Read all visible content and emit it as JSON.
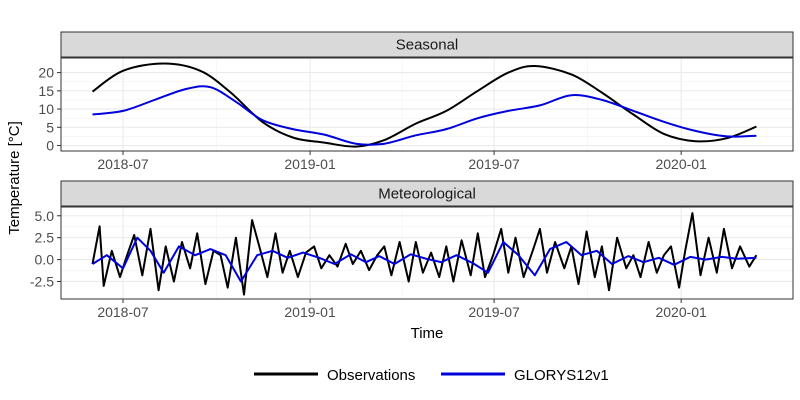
{
  "colors": {
    "observations": "#000000",
    "glorys": "#0000dd",
    "strip_bg": "#d9d9d9",
    "grid": "#ebebeb",
    "panel_border": "#333333"
  },
  "axes": {
    "xlabel": "Time",
    "ylabel": "Temperature [°C]"
  },
  "legend": {
    "placement": "bottom"
  },
  "chart_data": [
    {
      "type": "line",
      "title": "Seasonal",
      "x_ticks": [
        "2018-07",
        "2019-01",
        "2019-07",
        "2020-01"
      ],
      "y_ticks": [
        0,
        5,
        10,
        15,
        20
      ],
      "ylim": [
        -1.5,
        24
      ],
      "xlim": [
        "2018-05-01",
        "2020-04-20"
      ],
      "grid": true,
      "series": [
        {
          "name": "Observations",
          "x": [
            "2018-06-01",
            "2018-07-01",
            "2018-08-10",
            "2018-09-15",
            "2018-10-15",
            "2018-11-15",
            "2018-12-15",
            "2019-01-15",
            "2019-02-15",
            "2019-03-15",
            "2019-04-15",
            "2019-05-15",
            "2019-06-15",
            "2019-07-15",
            "2019-08-10",
            "2019-09-15",
            "2019-10-15",
            "2019-11-15",
            "2019-12-15",
            "2020-01-15",
            "2020-02-15",
            "2020-03-15"
          ],
          "y": [
            14.8,
            20.5,
            22.5,
            20.5,
            14.5,
            6.5,
            2.2,
            0.8,
            -0.3,
            1.5,
            6.0,
            9.5,
            15.0,
            20.0,
            21.8,
            19.5,
            14.5,
            8.5,
            3.2,
            1.2,
            2.0,
            5.2
          ]
        },
        {
          "name": "GLORYS12v1",
          "x": [
            "2018-06-01",
            "2018-07-01",
            "2018-08-01",
            "2018-09-01",
            "2018-09-25",
            "2018-10-20",
            "2018-11-15",
            "2018-12-15",
            "2019-01-15",
            "2019-02-15",
            "2019-03-15",
            "2019-04-15",
            "2019-05-15",
            "2019-06-15",
            "2019-07-15",
            "2019-08-15",
            "2019-09-15",
            "2019-10-15",
            "2019-11-15",
            "2019-12-15",
            "2020-01-15",
            "2020-02-15",
            "2020-03-15"
          ],
          "y": [
            8.5,
            9.5,
            12.5,
            15.5,
            16.0,
            12.0,
            7.0,
            4.5,
            3.0,
            0.5,
            0.5,
            2.8,
            4.5,
            7.5,
            9.5,
            11.0,
            13.8,
            12.5,
            9.5,
            6.5,
            4.0,
            2.5,
            2.7
          ]
        }
      ]
    },
    {
      "type": "line",
      "title": "Meteorological",
      "x_ticks": [
        "2018-07",
        "2019-01",
        "2019-07",
        "2020-01"
      ],
      "y_ticks": [
        -2.5,
        0.0,
        2.5,
        5.0
      ],
      "ylim": [
        -4.5,
        6.0
      ],
      "xlim": [
        "2018-05-01",
        "2020-04-20"
      ],
      "grid": true,
      "series": [
        {
          "name": "Observations",
          "x": [
            "2018-06-01",
            "2018-06-08",
            "2018-06-12",
            "2018-06-20",
            "2018-06-28",
            "2018-07-05",
            "2018-07-12",
            "2018-07-20",
            "2018-07-28",
            "2018-08-05",
            "2018-08-12",
            "2018-08-20",
            "2018-08-28",
            "2018-09-05",
            "2018-09-12",
            "2018-09-20",
            "2018-09-28",
            "2018-10-05",
            "2018-10-12",
            "2018-10-20",
            "2018-10-28",
            "2018-11-05",
            "2018-11-12",
            "2018-11-20",
            "2018-11-28",
            "2018-12-05",
            "2018-12-12",
            "2018-12-20",
            "2018-12-28",
            "2019-01-05",
            "2019-01-12",
            "2019-01-20",
            "2019-01-28",
            "2019-02-05",
            "2019-02-12",
            "2019-02-20",
            "2019-02-28",
            "2019-03-08",
            "2019-03-15",
            "2019-03-22",
            "2019-03-30",
            "2019-04-08",
            "2019-04-15",
            "2019-04-22",
            "2019-04-30",
            "2019-05-08",
            "2019-05-15",
            "2019-05-22",
            "2019-05-30",
            "2019-06-08",
            "2019-06-15",
            "2019-06-22",
            "2019-06-30",
            "2019-07-08",
            "2019-07-15",
            "2019-07-22",
            "2019-07-30",
            "2019-08-08",
            "2019-08-15",
            "2019-08-22",
            "2019-08-30",
            "2019-09-08",
            "2019-09-15",
            "2019-09-22",
            "2019-09-30",
            "2019-10-08",
            "2019-10-15",
            "2019-10-22",
            "2019-10-30",
            "2019-11-08",
            "2019-11-15",
            "2019-11-22",
            "2019-11-30",
            "2019-12-08",
            "2019-12-15",
            "2019-12-22",
            "2019-12-30",
            "2020-01-05",
            "2020-01-12",
            "2020-01-20",
            "2020-01-28",
            "2020-02-05",
            "2020-02-12",
            "2020-02-20",
            "2020-02-28",
            "2020-03-08",
            "2020-03-15"
          ],
          "y": [
            -0.5,
            3.8,
            -3.0,
            1.0,
            -2.0,
            0.5,
            2.8,
            -1.8,
            3.5,
            -3.5,
            1.5,
            -2.5,
            2.0,
            -1.0,
            3.0,
            -2.8,
            1.0,
            0.5,
            -3.2,
            2.5,
            -4.0,
            4.5,
            1.5,
            -2.0,
            3.0,
            -1.5,
            1.0,
            -2.0,
            0.8,
            1.5,
            -1.0,
            0.5,
            -0.8,
            1.8,
            -0.5,
            1.0,
            -1.2,
            0.5,
            1.5,
            -1.8,
            2.0,
            -2.5,
            2.0,
            -1.5,
            0.8,
            -2.0,
            1.5,
            -2.5,
            2.2,
            -1.8,
            3.0,
            -2.0,
            0.5,
            3.5,
            -1.5,
            2.5,
            -2.0,
            1.0,
            3.5,
            -1.5,
            2.0,
            -1.0,
            1.5,
            -2.8,
            3.2,
            -2.0,
            1.5,
            -3.5,
            2.5,
            -1.0,
            0.5,
            -2.0,
            2.0,
            -1.5,
            0.5,
            1.5,
            -3.2,
            1.0,
            5.3,
            -1.8,
            2.5,
            -1.5,
            3.5,
            -1.0,
            1.5,
            -0.8,
            0.5
          ]
        },
        {
          "name": "GLORYS12v1",
          "x": [
            "2018-06-01",
            "2018-06-15",
            "2018-07-01",
            "2018-07-15",
            "2018-07-28",
            "2018-08-10",
            "2018-08-25",
            "2018-09-10",
            "2018-09-25",
            "2018-10-10",
            "2018-10-25",
            "2018-11-10",
            "2018-11-25",
            "2018-12-10",
            "2018-12-25",
            "2019-01-10",
            "2019-01-25",
            "2019-02-10",
            "2019-02-25",
            "2019-03-10",
            "2019-03-25",
            "2019-04-10",
            "2019-04-25",
            "2019-05-10",
            "2019-05-25",
            "2019-06-10",
            "2019-06-25",
            "2019-07-10",
            "2019-07-25",
            "2019-08-10",
            "2019-08-25",
            "2019-09-10",
            "2019-09-25",
            "2019-10-10",
            "2019-10-25",
            "2019-11-10",
            "2019-11-25",
            "2019-12-10",
            "2019-12-25",
            "2020-01-10",
            "2020-01-25",
            "2020-02-10",
            "2020-02-25",
            "2020-03-15"
          ],
          "y": [
            -0.5,
            0.5,
            -1.0,
            2.5,
            1.0,
            -1.5,
            1.5,
            0.5,
            1.2,
            0.5,
            -2.5,
            0.5,
            1.0,
            0.2,
            0.8,
            0.2,
            -0.5,
            0.6,
            -0.3,
            0.4,
            -0.5,
            0.6,
            0.1,
            -0.3,
            0.5,
            -0.4,
            -1.5,
            2.0,
            0.5,
            -1.8,
            1.2,
            2.0,
            0.5,
            1.0,
            -0.5,
            0.4,
            -0.3,
            0.2,
            -0.6,
            0.3,
            0.0,
            0.3,
            0.1,
            0.2
          ]
        }
      ]
    }
  ]
}
